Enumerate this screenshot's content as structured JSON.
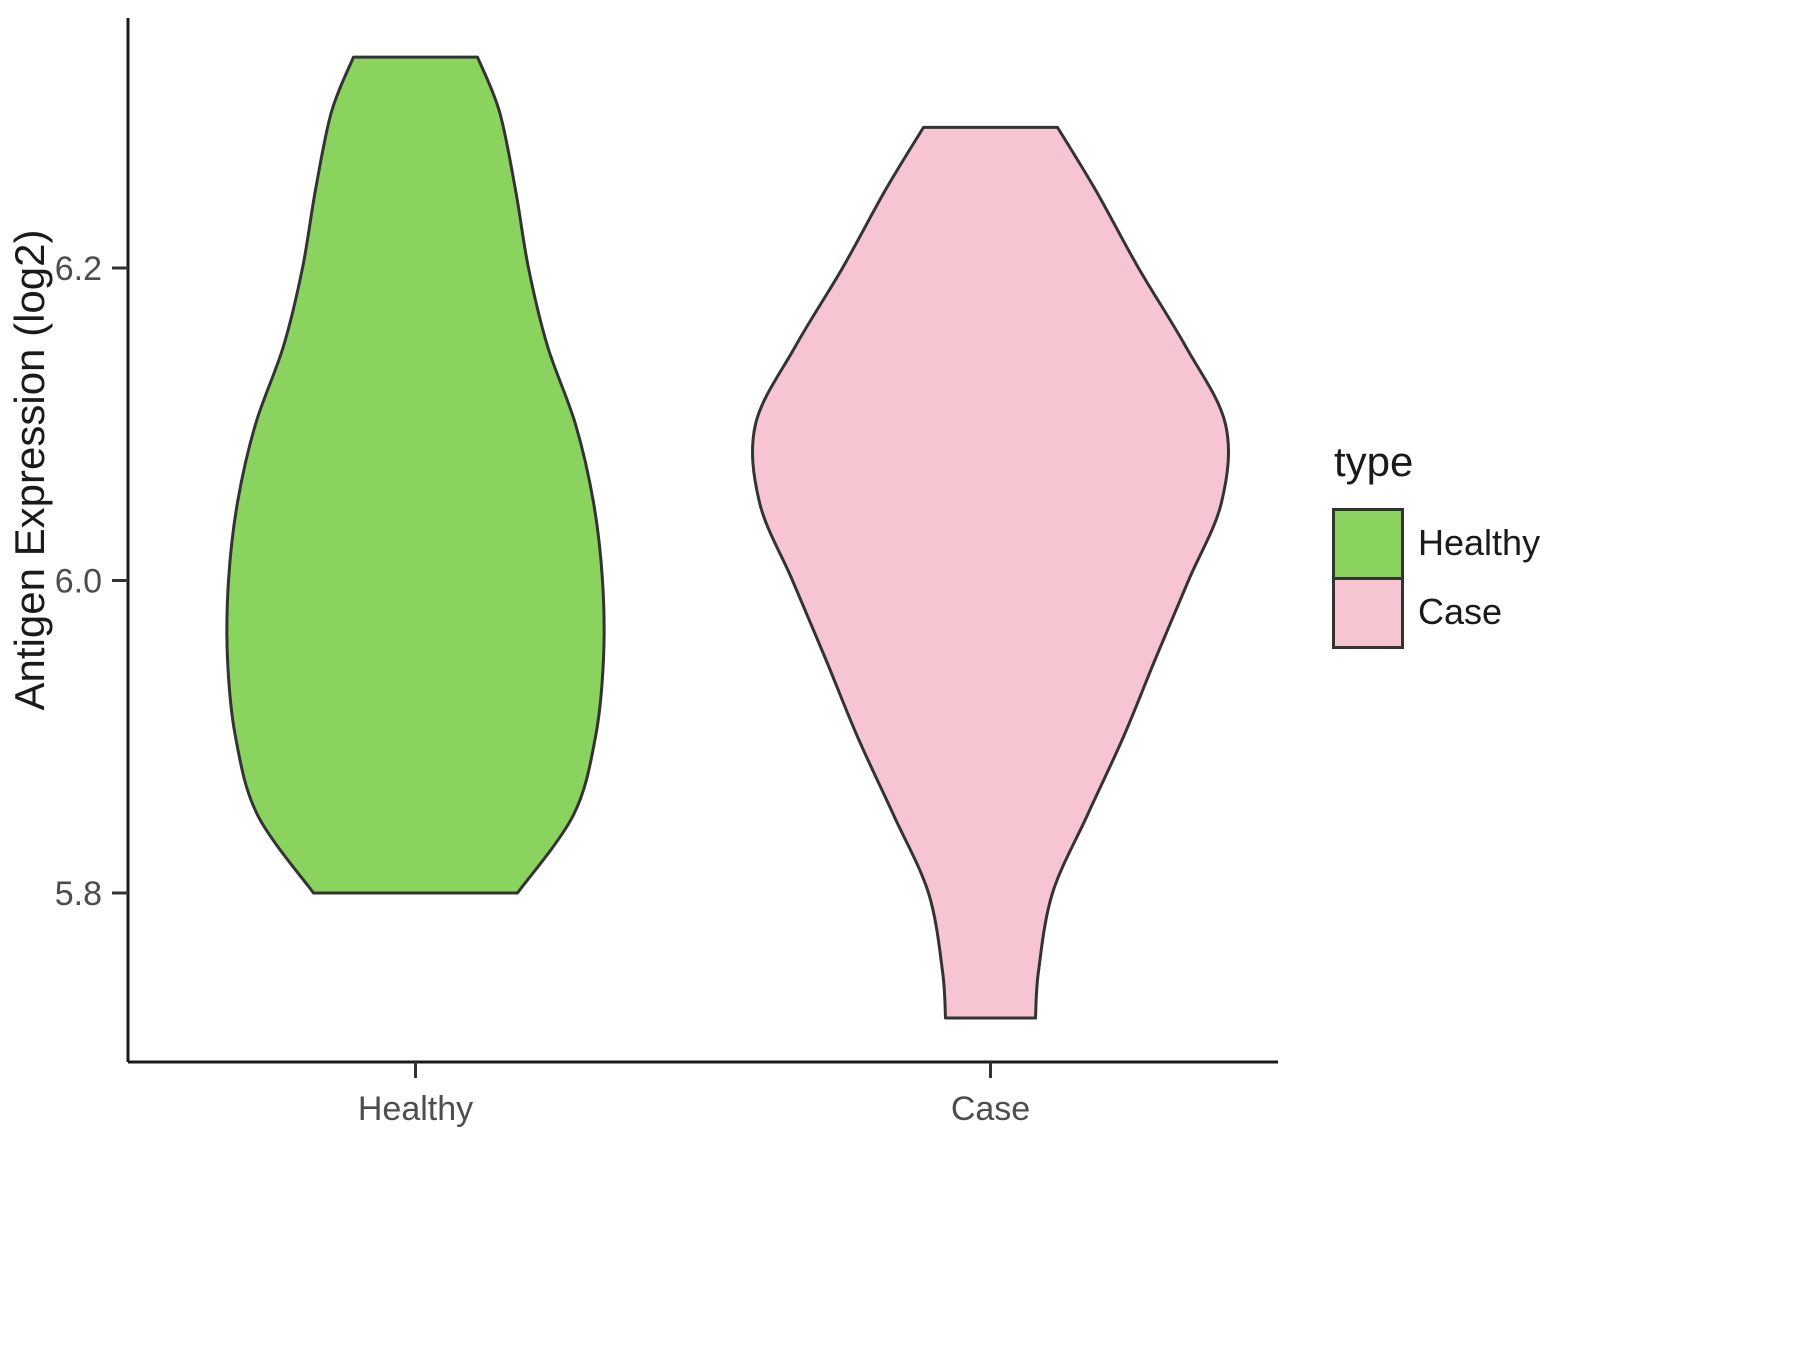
{
  "chart_data": {
    "type": "violin",
    "title": "",
    "xlabel": "",
    "ylabel": "Antigen Expression (log2)",
    "categories": [
      "Healthy",
      "Case"
    ],
    "yticks": [
      5.8,
      6.0,
      6.2
    ],
    "ylim": [
      5.67,
      6.37
    ],
    "grid": false,
    "background": "#ffffff",
    "axis_color": "#1a1a1a",
    "tick_text_color": "#4d4d4d",
    "legend": {
      "title": "type",
      "position": "right",
      "entries": [
        {
          "label": "Healthy",
          "color": "#8bd35f"
        },
        {
          "label": "Case",
          "color": "#f7c5d2"
        }
      ]
    },
    "series": [
      {
        "name": "Healthy",
        "fill": "#8bd35f",
        "outline": "#333333",
        "profile_units": "y value (log2 expression), half-width (density, px-equivalent)",
        "profile": [
          [
            6.335,
            62
          ],
          [
            6.3,
            84
          ],
          [
            6.25,
            100
          ],
          [
            6.2,
            113
          ],
          [
            6.15,
            132
          ],
          [
            6.1,
            160
          ],
          [
            6.05,
            178
          ],
          [
            6.0,
            187
          ],
          [
            5.95,
            188
          ],
          [
            5.9,
            180
          ],
          [
            5.85,
            158
          ],
          [
            5.8,
            102
          ]
        ]
      },
      {
        "name": "Case",
        "fill": "#f7c5d2",
        "outline": "#333333",
        "profile_units": "y value (log2 expression), half-width (density, px-equivalent)",
        "profile": [
          [
            6.29,
            67
          ],
          [
            6.25,
            105
          ],
          [
            6.2,
            148
          ],
          [
            6.15,
            195
          ],
          [
            6.1,
            235
          ],
          [
            6.05,
            231
          ],
          [
            6.0,
            198
          ],
          [
            5.95,
            165
          ],
          [
            5.9,
            133
          ],
          [
            5.85,
            97
          ],
          [
            5.8,
            62
          ],
          [
            5.75,
            48
          ],
          [
            5.72,
            45
          ]
        ]
      }
    ]
  }
}
